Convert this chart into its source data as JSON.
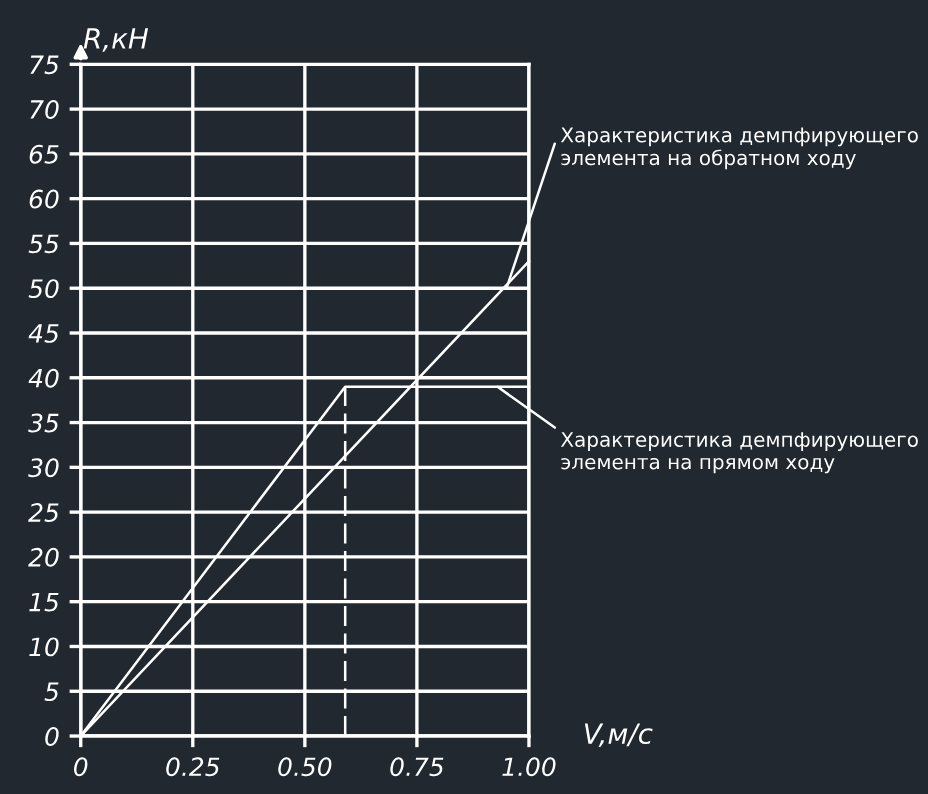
{
  "chart_data": {
    "type": "line",
    "xlabel": "V,м/с",
    "ylabel": "R,кН",
    "xlim": [
      0,
      1
    ],
    "ylim": [
      0,
      75
    ],
    "xticks": [
      0,
      {
        "value": 0.25,
        "label": "0.25"
      },
      {
        "value": 0.5,
        "label": "0.50"
      },
      {
        "value": 0.75,
        "label": "0.75"
      },
      {
        "value": 1,
        "label": "1.00"
      }
    ],
    "yticks": [
      0,
      5,
      10,
      15,
      20,
      25,
      30,
      35,
      40,
      45,
      50,
      55,
      60,
      65,
      70,
      75
    ],
    "grid": true,
    "marker": "none",
    "series": [
      {
        "color": "#ffffff",
        "x": [
          0,
          0.59,
          1.0
        ],
        "values": [
          0,
          39,
          39
        ]
      },
      {
        "color": "#ffffff",
        "x": [
          0,
          1.0
        ],
        "values": [
          0,
          53
        ]
      },
      {
        "color": "#ffffff",
        "x": [
          0.59,
          0.59
        ],
        "values": [
          0,
          39
        ],
        "line_style": "dashed"
      }
    ],
    "annotations": [
      {
        "text": "Характеристика демпфирующего\nэлемента на обратном ходу",
        "x": 0.95,
        "y": 50
      },
      {
        "text": "Характеристика демпфирующего\nэлемента на прямом ходу",
        "x": 0.93,
        "y": 39
      }
    ]
  }
}
